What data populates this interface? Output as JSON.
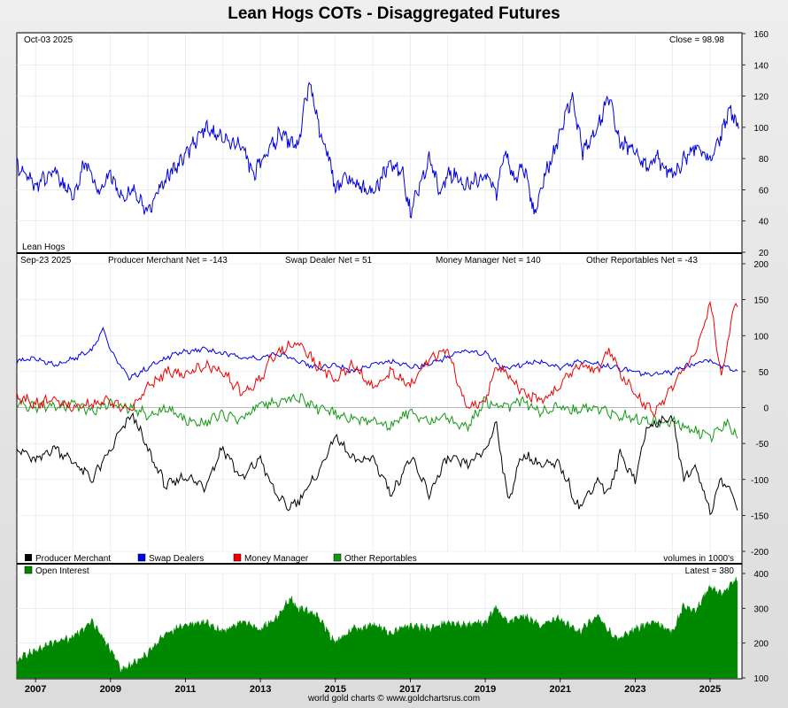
{
  "title": "Lean Hogs COTs - Disaggregated Futures",
  "footer": "world gold charts © www.goldchartsrus.com",
  "colors": {
    "price": "#0000dd",
    "producer": "#000000",
    "swap": "#0000ee",
    "money": "#ee0000",
    "other": "#119911",
    "oi": "#008800"
  },
  "chart_data": [
    {
      "type": "line",
      "title": "Lean Hogs",
      "date_label": "Oct-03  2025",
      "close_label": "Close = 98.98",
      "ylim": [
        20,
        160
      ],
      "yticks": [
        "160",
        "140",
        "120",
        "100",
        "80",
        "60",
        "40",
        "20"
      ],
      "series": [
        {
          "name": "Lean Hogs",
          "x": [
            2006.5,
            2007.0,
            2007.5,
            2008.0,
            2008.3,
            2008.7,
            2009.0,
            2009.3,
            2009.6,
            2010.0,
            2010.5,
            2011.0,
            2011.5,
            2012.0,
            2012.5,
            2012.8,
            2013.0,
            2013.5,
            2014.0,
            2014.3,
            2014.6,
            2014.8,
            2015.0,
            2015.3,
            2015.6,
            2016.0,
            2016.5,
            2016.8,
            2017.0,
            2017.5,
            2017.8,
            2018.0,
            2018.5,
            2019.0,
            2019.3,
            2019.5,
            2019.8,
            2020.0,
            2020.3,
            2020.6,
            2021.0,
            2021.3,
            2021.6,
            2022.0,
            2022.3,
            2022.6,
            2023.0,
            2023.3,
            2023.6,
            2024.0,
            2024.3,
            2024.6,
            2025.0,
            2025.3,
            2025.5,
            2025.76
          ],
          "values": [
            75,
            62,
            72,
            54,
            78,
            60,
            70,
            55,
            60,
            46,
            68,
            82,
            100,
            92,
            88,
            70,
            78,
            95,
            88,
            130,
            95,
            85,
            60,
            68,
            62,
            58,
            78,
            70,
            45,
            80,
            58,
            72,
            62,
            70,
            58,
            85,
            65,
            78,
            45,
            70,
            95,
            120,
            85,
            100,
            120,
            90,
            85,
            75,
            80,
            68,
            80,
            88,
            80,
            95,
            112,
            99
          ]
        }
      ]
    },
    {
      "type": "line",
      "date_label": "Sep-23  2025",
      "labels": {
        "producer": "Producer Merchant Net = -143",
        "swap": "Swap Dealer Net = 51",
        "money": "Money Manager Net = 140",
        "other": "Other Reportables Net = -43"
      },
      "legend": [
        "Producer Merchant",
        "Swap Dealers",
        "Money Manager",
        "Other Reportables"
      ],
      "units_label": "volumes in 1000's",
      "ylim": [
        -200,
        200
      ],
      "yticks": [
        "200",
        "150",
        "100",
        "50",
        "0",
        "-50",
        "-100",
        "-150",
        "-200"
      ],
      "series": [
        {
          "name": "Producer Merchant",
          "x": [
            2006.5,
            2007.0,
            2007.5,
            2008.0,
            2008.5,
            2009.0,
            2009.3,
            2009.6,
            2010.0,
            2010.5,
            2011.0,
            2011.5,
            2012.0,
            2012.5,
            2013.0,
            2013.3,
            2013.7,
            2014.0,
            2014.5,
            2015.0,
            2015.5,
            2016.0,
            2016.5,
            2017.0,
            2017.5,
            2018.0,
            2018.5,
            2019.0,
            2019.3,
            2019.6,
            2020.0,
            2020.5,
            2021.0,
            2021.5,
            2022.0,
            2022.3,
            2022.6,
            2023.0,
            2023.3,
            2023.6,
            2024.0,
            2024.3,
            2024.6,
            2025.0,
            2025.3,
            2025.6,
            2025.73
          ],
          "values": [
            -55,
            -75,
            -55,
            -75,
            -100,
            -60,
            -30,
            -10,
            -60,
            -110,
            -95,
            -110,
            -55,
            -100,
            -70,
            -110,
            -140,
            -130,
            -95,
            -40,
            -75,
            -70,
            -120,
            -70,
            -120,
            -70,
            -80,
            -60,
            -20,
            -130,
            -65,
            -80,
            -80,
            -140,
            -100,
            -120,
            -65,
            -100,
            -30,
            -20,
            -15,
            -100,
            -80,
            -145,
            -100,
            -120,
            -143
          ]
        },
        {
          "name": "Swap Dealers",
          "x": [
            2006.5,
            2007.0,
            2007.5,
            2008.0,
            2008.5,
            2008.8,
            2009.0,
            2009.5,
            2010.0,
            2010.5,
            2011.0,
            2011.5,
            2012.0,
            2012.5,
            2013.0,
            2013.5,
            2014.0,
            2014.5,
            2015.0,
            2015.5,
            2016.0,
            2016.5,
            2017.0,
            2017.5,
            2018.0,
            2018.5,
            2019.0,
            2019.5,
            2020.0,
            2020.5,
            2021.0,
            2021.5,
            2022.0,
            2022.5,
            2023.0,
            2023.5,
            2024.0,
            2024.5,
            2025.0,
            2025.5,
            2025.73
          ],
          "values": [
            65,
            68,
            60,
            68,
            80,
            108,
            80,
            40,
            55,
            70,
            78,
            80,
            75,
            70,
            70,
            75,
            65,
            55,
            60,
            50,
            60,
            65,
            55,
            60,
            70,
            80,
            75,
            55,
            60,
            65,
            55,
            65,
            60,
            55,
            50,
            45,
            50,
            60,
            65,
            55,
            51
          ]
        },
        {
          "name": "Money Manager",
          "x": [
            2006.5,
            2007.0,
            2007.5,
            2008.0,
            2008.5,
            2009.0,
            2009.5,
            2010.0,
            2010.5,
            2011.0,
            2011.5,
            2012.0,
            2012.5,
            2013.0,
            2013.3,
            2013.7,
            2014.0,
            2014.5,
            2015.0,
            2015.5,
            2016.0,
            2016.5,
            2017.0,
            2017.5,
            2018.0,
            2018.5,
            2019.0,
            2019.3,
            2019.7,
            2020.0,
            2020.5,
            2021.0,
            2021.5,
            2022.0,
            2022.3,
            2022.7,
            2023.0,
            2023.5,
            2024.0,
            2024.3,
            2024.7,
            2025.0,
            2025.3,
            2025.6,
            2025.73
          ],
          "values": [
            15,
            5,
            10,
            0,
            5,
            10,
            -5,
            30,
            50,
            45,
            60,
            50,
            20,
            40,
            70,
            85,
            90,
            60,
            40,
            60,
            25,
            50,
            30,
            70,
            80,
            0,
            10,
            60,
            40,
            20,
            10,
            30,
            60,
            50,
            80,
            40,
            20,
            -10,
            30,
            50,
            90,
            150,
            40,
            130,
            140
          ]
        },
        {
          "name": "Other Reportables",
          "x": [
            2006.5,
            2007.0,
            2007.5,
            2008.0,
            2008.5,
            2009.0,
            2009.5,
            2010.0,
            2010.5,
            2011.0,
            2011.5,
            2012.0,
            2012.5,
            2013.0,
            2013.5,
            2014.0,
            2014.5,
            2015.0,
            2015.5,
            2016.0,
            2016.5,
            2017.0,
            2017.5,
            2018.0,
            2018.5,
            2019.0,
            2019.5,
            2020.0,
            2020.5,
            2021.0,
            2021.5,
            2022.0,
            2022.5,
            2023.0,
            2023.5,
            2024.0,
            2024.5,
            2025.0,
            2025.5,
            2025.73
          ],
          "values": [
            5,
            0,
            2,
            5,
            -5,
            5,
            0,
            -10,
            0,
            -20,
            -20,
            -10,
            -15,
            5,
            10,
            15,
            0,
            -10,
            -15,
            -20,
            -25,
            -5,
            -20,
            -15,
            -30,
            10,
            0,
            10,
            -5,
            0,
            -5,
            0,
            -10,
            -15,
            -20,
            -20,
            -30,
            -40,
            -20,
            -43
          ]
        }
      ]
    },
    {
      "type": "area",
      "legend": [
        "Open Interest"
      ],
      "latest_label": "Latest = 380",
      "ylim": [
        100,
        400
      ],
      "yticks": [
        "400",
        "300",
        "200",
        "100"
      ],
      "xlabels": [
        "2007",
        "2009",
        "2011",
        "2013",
        "2015",
        "2017",
        "2019",
        "2021",
        "2023",
        "2025"
      ],
      "xlim": [
        2006.5,
        2025.85
      ],
      "series": [
        {
          "name": "Open Interest",
          "x": [
            2006.5,
            2007.0,
            2007.5,
            2008.0,
            2008.5,
            2009.0,
            2009.3,
            2009.7,
            2010.0,
            2010.5,
            2011.0,
            2011.5,
            2012.0,
            2012.5,
            2013.0,
            2013.5,
            2013.8,
            2014.0,
            2014.5,
            2015.0,
            2015.5,
            2016.0,
            2016.5,
            2017.0,
            2017.5,
            2018.0,
            2018.5,
            2019.0,
            2019.3,
            2019.6,
            2020.0,
            2020.5,
            2021.0,
            2021.5,
            2022.0,
            2022.5,
            2023.0,
            2023.5,
            2024.0,
            2024.3,
            2024.6,
            2025.0,
            2025.3,
            2025.6,
            2025.73
          ],
          "values": [
            150,
            180,
            200,
            215,
            260,
            180,
            120,
            150,
            170,
            230,
            250,
            260,
            230,
            260,
            240,
            280,
            330,
            300,
            280,
            200,
            240,
            250,
            230,
            250,
            240,
            260,
            250,
            260,
            300,
            260,
            280,
            250,
            270,
            230,
            280,
            210,
            240,
            260,
            230,
            310,
            290,
            360,
            340,
            370,
            380
          ]
        }
      ]
    }
  ]
}
